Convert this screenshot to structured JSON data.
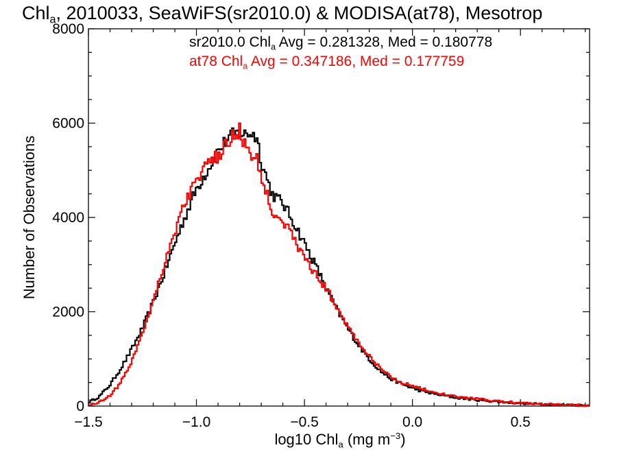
{
  "title": {
    "prefix": "Chl",
    "sub": "a",
    "rest": ", 2010033, SeaWiFS(sr2010.0) & MODISA(at78), Mesotrop"
  },
  "colors": {
    "sr2010": "#000000",
    "at78": "#ff0000",
    "axis": "#000000"
  },
  "legend": [
    {
      "pre": "sr2010.0 Chl",
      "sub": "a",
      "post": " Avg = 0.281328, Med = 0.180778",
      "color": "#000000"
    },
    {
      "pre": "at78 Chl",
      "sub": "a",
      "post": " Avg = 0.347186, Med = 0.177759",
      "color": "#ff0000"
    }
  ],
  "axes": {
    "ylabel": "Number of Observations",
    "xlabel_pre": "log10 Chl",
    "xlabel_sub": "a",
    "xlabel_unit_pre": " (mg m",
    "xlabel_sup": "−3",
    "xlabel_unit_post": ")"
  },
  "chart_data": {
    "type": "line",
    "title": "Chla, 2010033, SeaWiFS(sr2010.0) & MODISA(at78), Mesotrop",
    "xlabel": "log10 Chla (mg m−3)",
    "ylabel": "Number of Observations",
    "xlim": [
      -1.5,
      0.82
    ],
    "ylim": [
      0,
      8000
    ],
    "xticks": [
      -1.5,
      -1.0,
      -0.5,
      0.0,
      0.5
    ],
    "xtick_labels": [
      "−1.5",
      "−1.0",
      "−0.5",
      "0.0",
      "0.5"
    ],
    "yticks": [
      0,
      2000,
      4000,
      6000,
      8000
    ],
    "ytick_labels": [
      "0",
      "2000",
      "4000",
      "6000",
      "8000"
    ],
    "grid": false,
    "legend_position": "top",
    "series": [
      {
        "name": "sr2010.0",
        "color": "#000000",
        "x": [
          -1.5,
          -1.45,
          -1.4,
          -1.35,
          -1.3,
          -1.25,
          -1.2,
          -1.15,
          -1.1,
          -1.05,
          -1.0,
          -0.95,
          -0.9,
          -0.85,
          -0.8,
          -0.78,
          -0.75,
          -0.72,
          -0.7,
          -0.65,
          -0.6,
          -0.55,
          -0.5,
          -0.45,
          -0.4,
          -0.35,
          -0.3,
          -0.25,
          -0.2,
          -0.15,
          -0.1,
          -0.05,
          0.0,
          0.05,
          0.1,
          0.15,
          0.2,
          0.3,
          0.4,
          0.5,
          0.6,
          0.7,
          0.82
        ],
        "y": [
          80,
          200,
          450,
          800,
          1200,
          1650,
          2200,
          2800,
          3450,
          4050,
          4600,
          5000,
          5400,
          5700,
          5800,
          5750,
          5800,
          5700,
          5200,
          4500,
          4300,
          3900,
          3450,
          3000,
          2500,
          2050,
          1650,
          1300,
          1000,
          750,
          580,
          470,
          380,
          310,
          260,
          220,
          180,
          130,
          90,
          60,
          40,
          25,
          15
        ]
      },
      {
        "name": "at78",
        "color": "#ff0000",
        "x": [
          -1.5,
          -1.45,
          -1.4,
          -1.35,
          -1.3,
          -1.25,
          -1.2,
          -1.15,
          -1.1,
          -1.05,
          -1.0,
          -0.95,
          -0.9,
          -0.85,
          -0.82,
          -0.8,
          -0.78,
          -0.75,
          -0.72,
          -0.7,
          -0.65,
          -0.6,
          -0.55,
          -0.5,
          -0.45,
          -0.4,
          -0.35,
          -0.3,
          -0.25,
          -0.2,
          -0.15,
          -0.1,
          -0.05,
          0.0,
          0.05,
          0.1,
          0.15,
          0.2,
          0.3,
          0.4,
          0.5,
          0.6,
          0.7,
          0.82
        ],
        "y": [
          20,
          80,
          230,
          500,
          950,
          1550,
          2250,
          3000,
          3700,
          4350,
          4800,
          5100,
          5300,
          5600,
          5800,
          5850,
          5600,
          5300,
          5200,
          4900,
          4150,
          3950,
          3550,
          3150,
          2800,
          2500,
          2100,
          1700,
          1350,
          1050,
          800,
          620,
          500,
          430,
          360,
          290,
          240,
          200,
          150,
          100,
          70,
          45,
          30,
          18
        ]
      }
    ]
  }
}
